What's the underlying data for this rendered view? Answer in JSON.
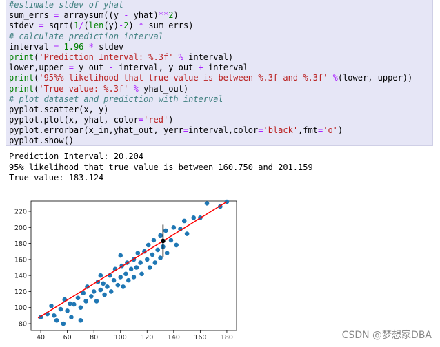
{
  "code": {
    "lines": [
      [
        {
          "t": "#estimate stdev of yhat",
          "c": "#408080",
          "i": true
        }
      ],
      [
        {
          "t": "sum_errs ",
          "c": "#000000"
        },
        {
          "t": "=",
          "c": "#aa22ff"
        },
        {
          "t": " arraysum((y ",
          "c": "#000000"
        },
        {
          "t": "-",
          "c": "#aa22ff"
        },
        {
          "t": " yhat)",
          "c": "#000000"
        },
        {
          "t": "**",
          "c": "#aa22ff"
        },
        {
          "t": "2",
          "c": "#008000"
        },
        {
          "t": ")",
          "c": "#000000"
        }
      ],
      [
        {
          "t": "stdev ",
          "c": "#000000"
        },
        {
          "t": "=",
          "c": "#aa22ff"
        },
        {
          "t": " sqrt(",
          "c": "#000000"
        },
        {
          "t": "1",
          "c": "#008000"
        },
        {
          "t": "/",
          "c": "#aa22ff"
        },
        {
          "t": "(",
          "c": "#000000"
        },
        {
          "t": "len",
          "c": "#008000"
        },
        {
          "t": "(y)",
          "c": "#000000"
        },
        {
          "t": "-",
          "c": "#aa22ff"
        },
        {
          "t": "2",
          "c": "#008000"
        },
        {
          "t": ") ",
          "c": "#000000"
        },
        {
          "t": "*",
          "c": "#aa22ff"
        },
        {
          "t": " sum_errs)",
          "c": "#000000"
        }
      ],
      [
        {
          "t": "# calculate prediction interval",
          "c": "#408080",
          "i": true
        }
      ],
      [
        {
          "t": "interval ",
          "c": "#000000"
        },
        {
          "t": "=",
          "c": "#aa22ff"
        },
        {
          "t": " 1.96 ",
          "c": "#008000"
        },
        {
          "t": "*",
          "c": "#aa22ff"
        },
        {
          "t": " stdev",
          "c": "#000000"
        }
      ],
      [
        {
          "t": "print",
          "c": "#008000"
        },
        {
          "t": "(",
          "c": "#000000"
        },
        {
          "t": "'Prediction Interval: %.3f'",
          "c": "#ba2121"
        },
        {
          "t": " % ",
          "c": "#aa22ff"
        },
        {
          "t": "interval)",
          "c": "#000000"
        }
      ],
      [
        {
          "t": "lower,upper ",
          "c": "#000000"
        },
        {
          "t": "=",
          "c": "#aa22ff"
        },
        {
          "t": " y_out ",
          "c": "#000000"
        },
        {
          "t": "-",
          "c": "#aa22ff"
        },
        {
          "t": " interval, y_out ",
          "c": "#000000"
        },
        {
          "t": "+",
          "c": "#aa22ff"
        },
        {
          "t": " interval",
          "c": "#000000"
        }
      ],
      [
        {
          "t": "print",
          "c": "#008000"
        },
        {
          "t": "(",
          "c": "#000000"
        },
        {
          "t": "'95%% likelihood that true value is between %.3f and %.3f'",
          "c": "#ba2121"
        },
        {
          "t": " %",
          "c": "#aa22ff"
        },
        {
          "t": "(lower, upper))",
          "c": "#000000"
        }
      ],
      [
        {
          "t": "print",
          "c": "#008000"
        },
        {
          "t": "(",
          "c": "#000000"
        },
        {
          "t": "'True value: %.3f'",
          "c": "#ba2121"
        },
        {
          "t": " % ",
          "c": "#aa22ff"
        },
        {
          "t": "yhat_out)",
          "c": "#000000"
        }
      ],
      [
        {
          "t": "# plot dataset and prediction with interval",
          "c": "#408080",
          "i": true
        }
      ],
      [
        {
          "t": "pyplot.scatter(x, y)",
          "c": "#000000"
        }
      ],
      [
        {
          "t": "pyplot.plot(x, yhat, color",
          "c": "#000000"
        },
        {
          "t": "=",
          "c": "#aa22ff"
        },
        {
          "t": "'red'",
          "c": "#ba2121"
        },
        {
          "t": ")",
          "c": "#000000"
        }
      ],
      [
        {
          "t": "pyplot.errorbar(x_in,yhat_out, yerr",
          "c": "#000000"
        },
        {
          "t": "=",
          "c": "#aa22ff"
        },
        {
          "t": "interval,color",
          "c": "#000000"
        },
        {
          "t": "=",
          "c": "#aa22ff"
        },
        {
          "t": "'black'",
          "c": "#ba2121"
        },
        {
          "t": ",fmt",
          "c": "#000000"
        },
        {
          "t": "=",
          "c": "#aa22ff"
        },
        {
          "t": "'o'",
          "c": "#ba2121"
        },
        {
          "t": ")",
          "c": "#000000"
        }
      ],
      [
        {
          "t": "pyplot.show()",
          "c": "#000000"
        }
      ]
    ]
  },
  "output": [
    "Prediction Interval: 20.204",
    "95% likelihood that true value is between 160.750 and 201.159",
    "True value: 183.124"
  ],
  "chart_data": {
    "type": "scatter",
    "xlim": [
      32.7,
      187.3
    ],
    "ylim": [
      71.4,
      232.9
    ],
    "xticks": [
      40,
      60,
      80,
      100,
      120,
      140,
      160,
      180
    ],
    "yticks": [
      80,
      100,
      120,
      140,
      160,
      180,
      200,
      220
    ],
    "series": [
      {
        "color": "#1f77b4",
        "x": [
          40,
          45,
          48,
          50,
          52,
          55,
          58,
          60,
          62,
          63,
          65,
          68,
          70,
          72,
          74,
          75,
          78,
          80,
          82,
          83,
          85,
          87,
          88,
          90,
          92,
          93,
          95,
          96,
          98,
          100,
          101,
          102,
          104,
          105,
          106,
          108,
          110,
          110,
          112,
          113,
          115,
          116,
          118,
          120,
          121,
          122,
          124,
          125,
          126,
          128,
          130,
          130,
          132,
          134,
          135,
          138,
          140,
          142,
          145,
          148,
          150,
          155,
          160,
          165,
          175,
          180,
          70,
          57,
          85,
          100
        ],
        "y": [
          88,
          92,
          102,
          90,
          84,
          98,
          110,
          96,
          105,
          88,
          104,
          112,
          100,
          118,
          108,
          126,
          114,
          120,
          108,
          132,
          122,
          130,
          116,
          126,
          140,
          120,
          134,
          148,
          128,
          138,
          152,
          126,
          142,
          156,
          134,
          148,
          160,
          138,
          150,
          168,
          156,
          142,
          170,
          160,
          178,
          150,
          166,
          184,
          156,
          172,
          190,
          162,
          176,
          196,
          168,
          184,
          200,
          178,
          198,
          208,
          192,
          212,
          212,
          230,
          226,
          232,
          84,
          80,
          140,
          165
        ]
      }
    ],
    "fit": {
      "color": "#ff0000",
      "x": [
        38,
        180
      ],
      "y": [
        87,
        232
      ]
    },
    "errorbar": {
      "color": "#000000",
      "x": 132,
      "y": 183.124,
      "err": 20.204
    }
  },
  "watermark": "CSDN @梦想家DBA"
}
